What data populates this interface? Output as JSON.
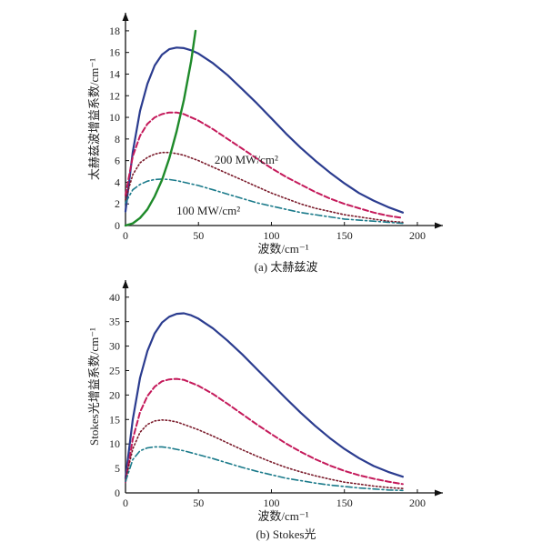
{
  "chart_data": [
    {
      "type": "line",
      "caption": "(a) 太赫兹波",
      "xlabel": "波数/cm⁻¹",
      "ylabel": "太赫兹波增益系数/cm⁻¹",
      "xlim": [
        0,
        210
      ],
      "ylim": [
        0,
        19
      ],
      "xticks": [
        0,
        50,
        100,
        150,
        200
      ],
      "yticks": [
        0,
        2,
        4,
        6,
        8,
        10,
        12,
        14,
        16,
        18
      ],
      "annotations": [
        {
          "text": "200 MW/cm²",
          "x": 61,
          "y": 5.7
        },
        {
          "text": "100 MW/cm²",
          "x": 35,
          "y": 1.0
        }
      ],
      "series": [
        {
          "color": "#2b3c8f",
          "dash": "solid",
          "width": 2.2,
          "x": [
            0,
            5,
            10,
            15,
            20,
            25,
            30,
            35,
            40,
            45,
            50,
            60,
            70,
            80,
            90,
            100,
            110,
            120,
            130,
            140,
            150,
            160,
            170,
            180,
            190
          ],
          "y": [
            1.3,
            6.8,
            10.6,
            13.1,
            14.8,
            15.8,
            16.3,
            16.45,
            16.4,
            16.2,
            15.9,
            15.0,
            13.9,
            12.6,
            11.3,
            9.9,
            8.5,
            7.2,
            6.0,
            4.9,
            3.9,
            3.0,
            2.3,
            1.7,
            1.2
          ]
        },
        {
          "color": "#c4195a",
          "dash": "dashed",
          "width": 2,
          "x": [
            0,
            5,
            10,
            15,
            20,
            25,
            30,
            35,
            40,
            50,
            60,
            70,
            80,
            90,
            100,
            110,
            120,
            130,
            140,
            150,
            160,
            170,
            180,
            190
          ],
          "y": [
            2.8,
            6.4,
            8.3,
            9.4,
            10.0,
            10.3,
            10.45,
            10.45,
            10.3,
            9.7,
            8.9,
            8.0,
            7.1,
            6.2,
            5.3,
            4.5,
            3.8,
            3.1,
            2.5,
            2.0,
            1.6,
            1.2,
            0.9,
            0.7
          ]
        },
        {
          "color": "#7a1a2a",
          "dash": "dotted",
          "width": 1.6,
          "x": [
            0,
            5,
            10,
            15,
            20,
            25,
            30,
            35,
            40,
            50,
            60,
            70,
            80,
            90,
            100,
            110,
            120,
            130,
            140,
            150,
            160,
            170,
            180,
            190
          ],
          "y": [
            2.4,
            4.7,
            5.8,
            6.3,
            6.6,
            6.75,
            6.75,
            6.65,
            6.5,
            6.0,
            5.4,
            4.8,
            4.2,
            3.6,
            3.0,
            2.5,
            2.0,
            1.6,
            1.3,
            1.0,
            0.8,
            0.6,
            0.4,
            0.3
          ]
        },
        {
          "color": "#1a7a8a",
          "dash": "dashdot",
          "width": 1.6,
          "x": [
            0,
            5,
            10,
            15,
            20,
            25,
            30,
            35,
            40,
            50,
            60,
            70,
            80,
            90,
            100,
            110,
            120,
            130,
            140,
            150,
            160,
            170,
            180,
            190
          ],
          "y": [
            2.1,
            3.3,
            3.8,
            4.1,
            4.25,
            4.3,
            4.25,
            4.15,
            4.0,
            3.7,
            3.3,
            2.9,
            2.5,
            2.1,
            1.8,
            1.5,
            1.2,
            1.0,
            0.8,
            0.6,
            0.5,
            0.4,
            0.3,
            0.2
          ]
        },
        {
          "color": "#1e8a2a",
          "dash": "solid",
          "width": 2.4,
          "x": [
            0,
            5,
            10,
            15,
            20,
            25,
            30,
            35,
            40,
            45,
            48
          ],
          "y": [
            0,
            0.2,
            0.7,
            1.5,
            2.7,
            4.2,
            6.2,
            8.7,
            11.6,
            15.2,
            18.0
          ]
        }
      ]
    },
    {
      "type": "line",
      "caption": "(b) Stokes光",
      "xlabel": "波数/cm⁻¹",
      "ylabel": "Stokes光增益系数/cm⁻¹",
      "xlim": [
        0,
        210
      ],
      "ylim": [
        0,
        42
      ],
      "xticks": [
        0,
        50,
        100,
        150,
        200
      ],
      "yticks": [
        0,
        5,
        10,
        15,
        20,
        25,
        30,
        35,
        40
      ],
      "series": [
        {
          "color": "#2b3c8f",
          "dash": "solid",
          "width": 2.2,
          "x": [
            0,
            5,
            10,
            15,
            20,
            25,
            30,
            35,
            40,
            45,
            50,
            60,
            70,
            80,
            90,
            100,
            110,
            120,
            130,
            140,
            150,
            160,
            170,
            180,
            190
          ],
          "y": [
            3.0,
            15.0,
            23.5,
            29.0,
            32.6,
            34.8,
            36.0,
            36.6,
            36.7,
            36.3,
            35.6,
            33.6,
            31.1,
            28.3,
            25.3,
            22.3,
            19.3,
            16.4,
            13.7,
            11.2,
            9.0,
            7.1,
            5.5,
            4.3,
            3.3
          ]
        },
        {
          "color": "#c4195a",
          "dash": "dashed",
          "width": 2,
          "x": [
            0,
            5,
            10,
            15,
            20,
            25,
            30,
            35,
            40,
            50,
            60,
            70,
            80,
            90,
            100,
            110,
            120,
            130,
            140,
            150,
            160,
            170,
            180,
            190
          ],
          "y": [
            2.2,
            11.0,
            16.5,
            19.8,
            21.7,
            22.8,
            23.2,
            23.3,
            23.1,
            21.9,
            20.2,
            18.2,
            16.1,
            14.0,
            12.0,
            10.1,
            8.4,
            6.9,
            5.6,
            4.5,
            3.6,
            2.9,
            2.3,
            1.8
          ]
        },
        {
          "color": "#7a1a2a",
          "dash": "dotted",
          "width": 1.6,
          "x": [
            0,
            5,
            10,
            15,
            20,
            25,
            30,
            35,
            40,
            50,
            60,
            70,
            80,
            90,
            100,
            110,
            120,
            130,
            140,
            150,
            160,
            170,
            180,
            190
          ],
          "y": [
            2.6,
            9.0,
            12.4,
            14.0,
            14.7,
            14.9,
            14.8,
            14.5,
            14.0,
            12.9,
            11.6,
            10.2,
            8.8,
            7.5,
            6.3,
            5.2,
            4.3,
            3.5,
            2.8,
            2.2,
            1.8,
            1.4,
            1.1,
            0.9
          ]
        },
        {
          "color": "#1a7a8a",
          "dash": "dashdot",
          "width": 1.6,
          "x": [
            0,
            5,
            10,
            15,
            20,
            25,
            30,
            35,
            40,
            50,
            60,
            70,
            80,
            90,
            100,
            110,
            120,
            130,
            140,
            150,
            160,
            170,
            180,
            190
          ],
          "y": [
            2.3,
            6.8,
            8.6,
            9.2,
            9.4,
            9.4,
            9.2,
            8.9,
            8.6,
            7.8,
            7.0,
            6.1,
            5.2,
            4.4,
            3.7,
            3.0,
            2.5,
            2.0,
            1.6,
            1.3,
            1.0,
            0.8,
            0.6,
            0.5
          ]
        }
      ]
    }
  ]
}
